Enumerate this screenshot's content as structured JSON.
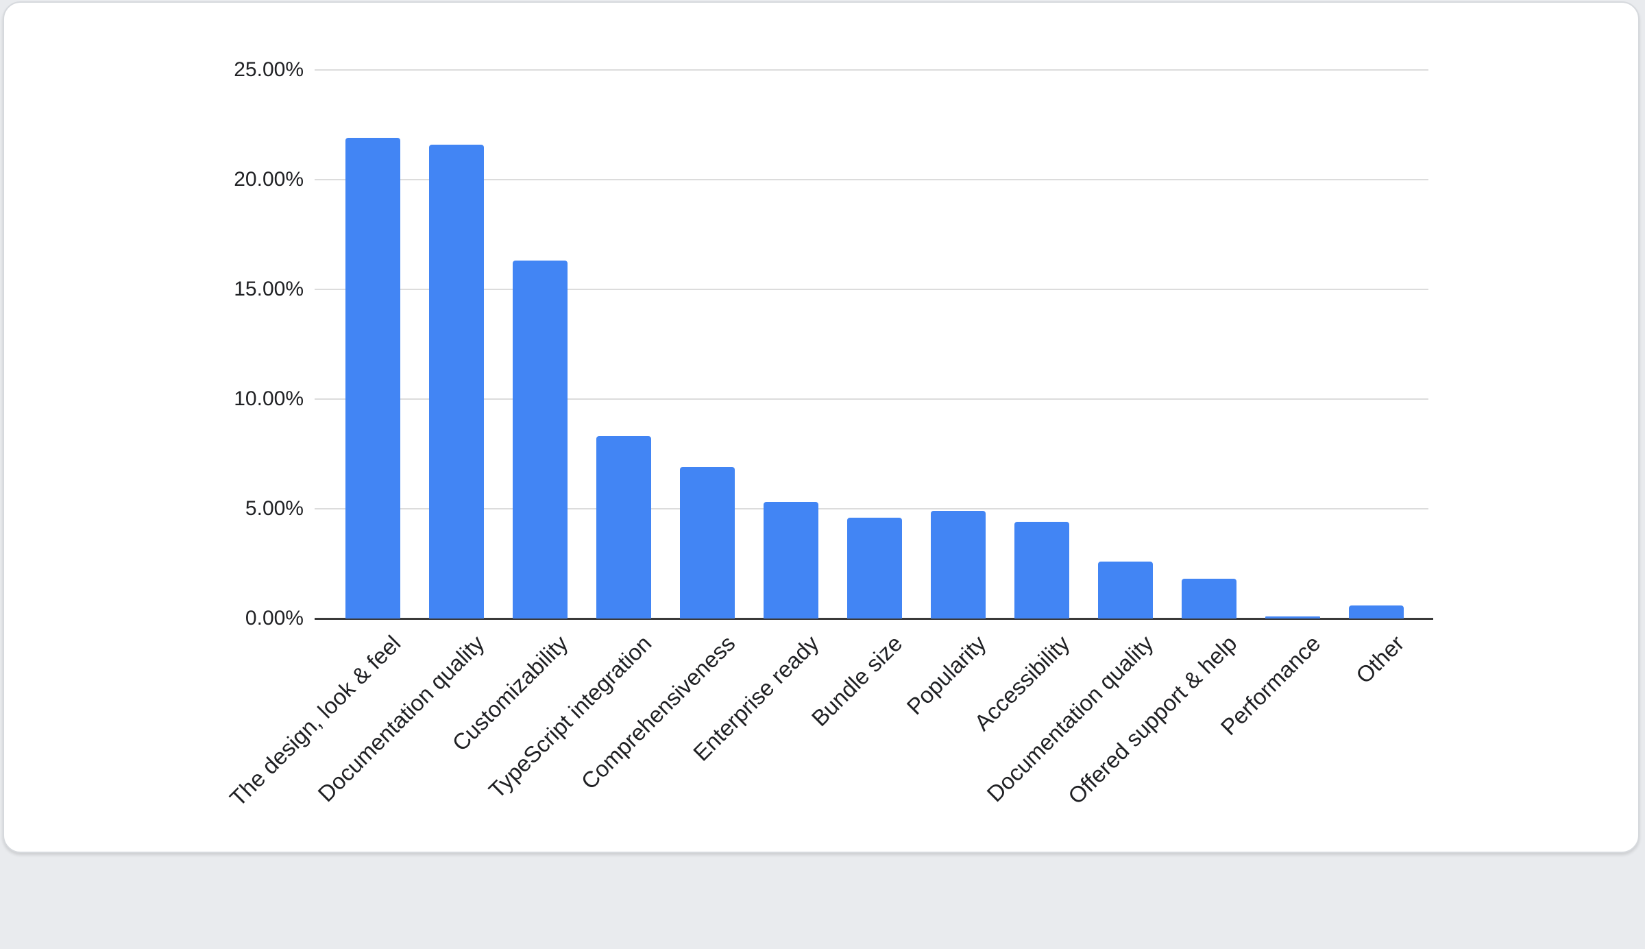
{
  "chart_data": {
    "type": "bar",
    "categories": [
      "The design, look & feel",
      "Documentation quality",
      "Customizability",
      "TypeScript integration",
      "Comprehensiveness",
      "Enterprise ready",
      "Bundle size",
      "Popularity",
      "Accessibility",
      "Documentation quality",
      "Offered support & help",
      "Performance",
      "Other"
    ],
    "values": [
      21.9,
      21.6,
      16.3,
      8.3,
      6.9,
      5.3,
      4.6,
      4.9,
      4.4,
      2.6,
      1.8,
      0.1,
      0.6
    ],
    "title": "",
    "xlabel": "",
    "ylabel": "",
    "ylim": [
      0,
      25
    ],
    "y_ticks": [
      {
        "value": 25,
        "label": "25.00%"
      },
      {
        "value": 20,
        "label": "20.00%"
      },
      {
        "value": 15,
        "label": "15.00%"
      },
      {
        "value": 10,
        "label": "10.00%"
      },
      {
        "value": 5,
        "label": "5.00%"
      },
      {
        "value": 0,
        "label": "0.00%"
      }
    ],
    "grid": true,
    "legend_position": "none",
    "bar_color": "#4285f4",
    "gridline_color": "#dcdcdc",
    "axis_line_color": "#3a3a3a",
    "label_color": "#202124",
    "x_label_rotation_deg": -45
  }
}
